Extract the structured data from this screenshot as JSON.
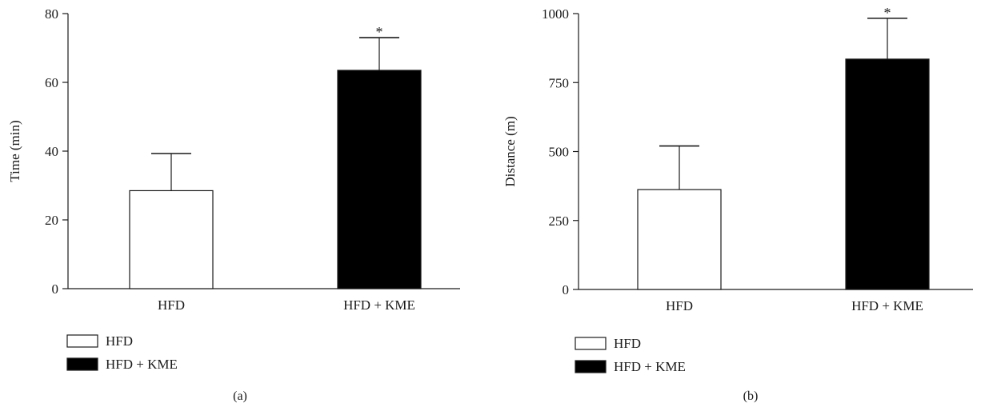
{
  "chart_data": [
    {
      "panel": "(a)",
      "type": "bar",
      "categories": [
        "HFD",
        "HFD + KME"
      ],
      "values": [
        28.5,
        63.5
      ],
      "errors": [
        10.8,
        9.5
      ],
      "significance": [
        "",
        "*"
      ],
      "colors": [
        "#ffffff",
        "#000000"
      ],
      "ylabel": "Time (min)",
      "xlabel": "",
      "ylim": [
        0,
        80
      ],
      "yticks": [
        0,
        20,
        40,
        60,
        80
      ],
      "legend": [
        "HFD",
        "HFD + KME"
      ],
      "legend_position": "bottom-left"
    },
    {
      "panel": "(b)",
      "type": "bar",
      "categories": [
        "HFD",
        "HFD + KME"
      ],
      "values": [
        362,
        835
      ],
      "errors": [
        158,
        148
      ],
      "significance": [
        "",
        "*"
      ],
      "colors": [
        "#ffffff",
        "#000000"
      ],
      "ylabel": "Distance (m)",
      "xlabel": "",
      "ylim": [
        0,
        1000
      ],
      "yticks": [
        0,
        250,
        500,
        750,
        1000
      ],
      "legend": [
        "HFD",
        "HFD + KME"
      ],
      "legend_position": "bottom-left"
    }
  ]
}
